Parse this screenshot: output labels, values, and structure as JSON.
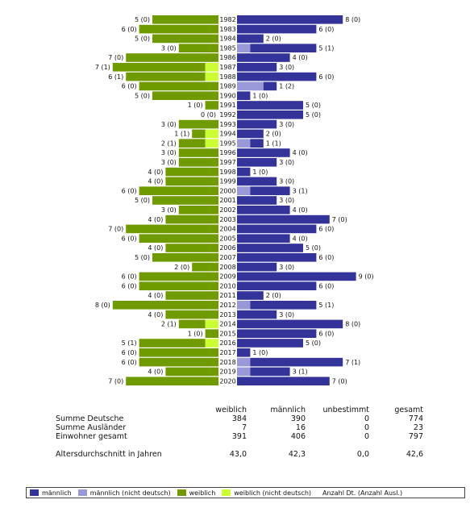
{
  "chart_data": {
    "type": "bar",
    "subtype": "population-pyramid",
    "years": [
      "1982",
      "1983",
      "1984",
      "1985",
      "1986",
      "1987",
      "1988",
      "1989",
      "1990",
      "1991",
      "1992",
      "1993",
      "1994",
      "1995",
      "1996",
      "1997",
      "1998",
      "1999",
      "2000",
      "2001",
      "2002",
      "2003",
      "2004",
      "2005",
      "2006",
      "2007",
      "2008",
      "2009",
      "2010",
      "2011",
      "2012",
      "2013",
      "2014",
      "2015",
      "2016",
      "2017",
      "2018",
      "2019",
      "2020"
    ],
    "female": {
      "total": [
        5,
        6,
        5,
        3,
        7,
        7,
        6,
        6,
        5,
        1,
        0,
        3,
        1,
        2,
        3,
        3,
        4,
        4,
        6,
        5,
        3,
        4,
        7,
        6,
        4,
        5,
        2,
        6,
        6,
        4,
        8,
        4,
        2,
        1,
        5,
        6,
        6,
        4,
        7
      ],
      "foreign": [
        0,
        0,
        0,
        0,
        0,
        1,
        1,
        0,
        0,
        0,
        0,
        0,
        1,
        1,
        0,
        0,
        0,
        0,
        0,
        0,
        0,
        0,
        0,
        0,
        0,
        0,
        0,
        0,
        0,
        0,
        0,
        0,
        1,
        0,
        1,
        0,
        0,
        0,
        0
      ]
    },
    "male": {
      "total": [
        8,
        6,
        2,
        5,
        4,
        3,
        6,
        1,
        1,
        5,
        5,
        3,
        2,
        1,
        4,
        3,
        1,
        3,
        3,
        3,
        4,
        7,
        6,
        4,
        5,
        6,
        3,
        9,
        6,
        2,
        5,
        3,
        8,
        6,
        5,
        1,
        7,
        3,
        7
      ],
      "foreign": [
        0,
        0,
        0,
        1,
        0,
        0,
        0,
        2,
        0,
        0,
        0,
        0,
        0,
        1,
        0,
        0,
        0,
        0,
        1,
        0,
        0,
        0,
        0,
        0,
        0,
        0,
        0,
        0,
        0,
        0,
        1,
        0,
        0,
        0,
        0,
        0,
        1,
        1,
        0
      ]
    },
    "max_value": 9,
    "colors": {
      "male": "#33339a",
      "male_foreign": "#9a99d8",
      "female": "#6f9a00",
      "female_foreign": "#ccff33"
    }
  },
  "stats": {
    "headers": [
      "weiblich",
      "männlich",
      "unbestimmt",
      "gesamt"
    ],
    "rows": [
      {
        "label": "Summe Deutsche",
        "values": [
          "384",
          "390",
          "0",
          "774"
        ]
      },
      {
        "label": "Summe Ausländer",
        "values": [
          "7",
          "16",
          "0",
          "23"
        ]
      },
      {
        "label": "Einwohner gesamt",
        "values": [
          "391",
          "406",
          "0",
          "797"
        ]
      }
    ],
    "avg_row": {
      "label": "Altersdurchschnitt in Jahren",
      "values": [
        "43,0",
        "42,3",
        "0,0",
        "42,6"
      ]
    }
  },
  "legend": {
    "items": [
      {
        "label": "männlich",
        "color": "#33339a"
      },
      {
        "label": "männlich (nicht deutsch)",
        "color": "#9a99d8"
      },
      {
        "label": "weiblich",
        "color": "#6f9a00"
      },
      {
        "label": "weiblich (nicht deutsch)",
        "color": "#ccff33"
      }
    ],
    "note": "Anzahl Dt. (Anzahl Ausl.)"
  }
}
